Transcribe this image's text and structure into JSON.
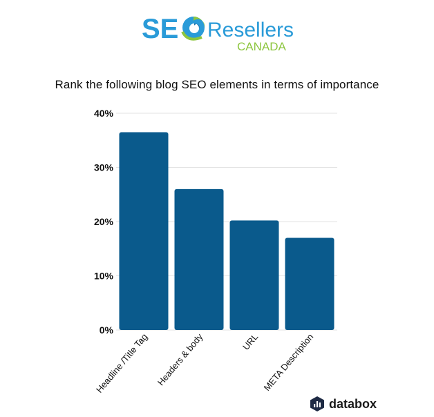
{
  "logo": {
    "seo": "SE",
    "resellers": "Resellers",
    "canada": "CANADA"
  },
  "colors": {
    "bar": "#0a5a8c",
    "logo_blue": "#2a9bd8",
    "logo_green": "#8dc63f",
    "grid": "#e3e3e3"
  },
  "chart_data": {
    "type": "bar",
    "title": "Rank the following blog SEO elements in terms of importance",
    "categories": [
      "Headline /Title Tag",
      "Headers & body",
      "URL",
      "META Description"
    ],
    "values": [
      36.5,
      26,
      20.2,
      17
    ],
    "ylim": [
      0,
      40
    ],
    "yticks": [
      "0%",
      "10%",
      "20%",
      "30%",
      "40%"
    ],
    "ytick_values": [
      0,
      10,
      20,
      30,
      40
    ],
    "grid": true
  },
  "footer": {
    "brand": "databox",
    "icon": "databox-logo-icon"
  }
}
